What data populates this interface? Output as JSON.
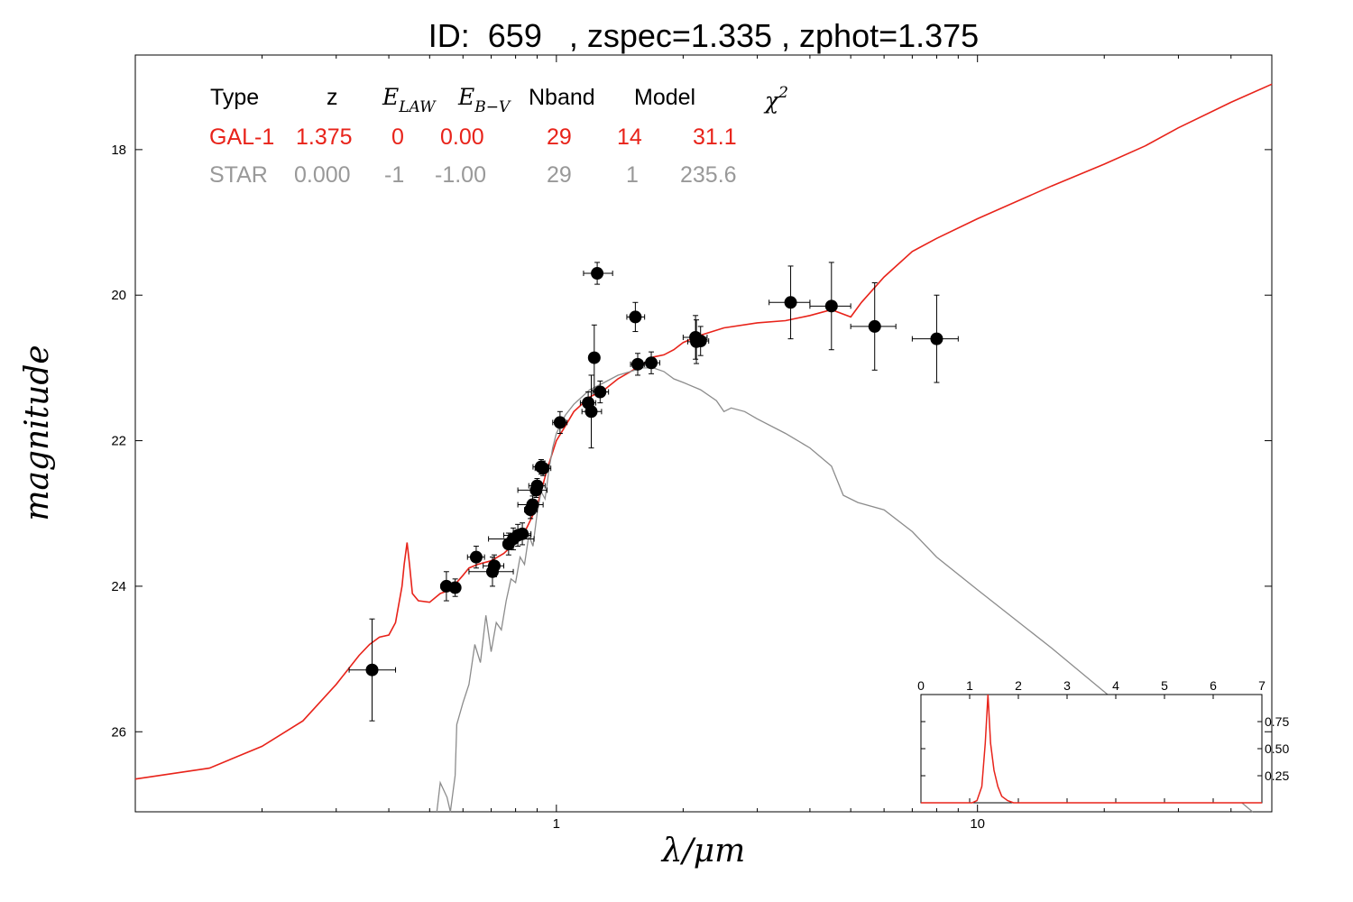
{
  "chart_data": {
    "type": "scatter",
    "title": "ID:  659   , zspec=1.335 , zphot=1.375",
    "xlabel": "λ/μm",
    "ylabel": "magnitude",
    "xscale": "log",
    "xlim": [
      0.1,
      50
    ],
    "ylim": [
      27.1,
      16.7
    ],
    "x_ticks": [
      "1",
      "10"
    ],
    "y_ticks": [
      "18",
      "20",
      "22",
      "24",
      "26"
    ],
    "grid": false,
    "colors": {
      "galaxy": "#e8231a",
      "star": "#8c8c8c",
      "points": "#000000"
    },
    "summary_table": {
      "headers": [
        "Type",
        "z",
        "E_LAW",
        "E_B-V",
        "Nband",
        "Model",
        "χ2"
      ],
      "rows": [
        {
          "name": "GAL-1",
          "color": "#e8231a",
          "values": [
            "GAL-1",
            "1.375",
            "0",
            "0.00",
            "29",
            "14",
            "31.1"
          ]
        },
        {
          "name": "STAR",
          "color": "#999999",
          "values": [
            "STAR",
            "0.000",
            "-1",
            "-1.00",
            "29",
            "1",
            "235.6"
          ]
        }
      ]
    },
    "photometry": [
      {
        "x": 0.365,
        "y": 25.15,
        "xerr": [
          0.322,
          0.415
        ],
        "yerr": 0.7
      },
      {
        "x": 0.548,
        "y": 24.0,
        "xerr": [
          0.532,
          0.562
        ],
        "yerr": 0.2
      },
      {
        "x": 0.575,
        "y": 24.02,
        "xerr": [
          0.56,
          0.59
        ],
        "yerr": 0.12
      },
      {
        "x": 0.645,
        "y": 23.6,
        "xerr": [
          0.615,
          0.675
        ],
        "yerr": 0.15
      },
      {
        "x": 0.712,
        "y": 23.72,
        "xerr": [
          0.67,
          0.75
        ],
        "yerr": 0.15
      },
      {
        "x": 0.705,
        "y": 23.8,
        "xerr": [
          0.62,
          0.79
        ],
        "yerr": 0.2
      },
      {
        "x": 0.77,
        "y": 23.42,
        "xerr": [
          0.76,
          0.785
        ],
        "yerr": 0.15
      },
      {
        "x": 0.79,
        "y": 23.35,
        "xerr": [
          0.69,
          0.885
        ],
        "yerr": 0.15
      },
      {
        "x": 0.81,
        "y": 23.3,
        "xerr": [
          0.75,
          0.87
        ],
        "yerr": 0.15
      },
      {
        "x": 0.83,
        "y": 23.28,
        "xerr": [
          0.79,
          0.87
        ],
        "yerr": 0.15
      },
      {
        "x": 0.868,
        "y": 22.95,
        "xerr": [
          0.84,
          0.9
        ],
        "yerr": 0.12
      },
      {
        "x": 0.878,
        "y": 22.88,
        "xerr": [
          0.81,
          0.93
        ],
        "yerr": 0.12
      },
      {
        "x": 0.895,
        "y": 22.68,
        "xerr": [
          0.81,
          0.95
        ],
        "yerr": 0.1
      },
      {
        "x": 0.9,
        "y": 22.62,
        "xerr": [
          0.86,
          0.94
        ],
        "yerr": 0.1
      },
      {
        "x": 0.92,
        "y": 22.36,
        "xerr": [
          0.88,
          0.96
        ],
        "yerr": 0.1
      },
      {
        "x": 0.93,
        "y": 22.38,
        "xerr": [
          0.89,
          0.97
        ],
        "yerr": 0.1
      },
      {
        "x": 1.02,
        "y": 21.75,
        "xerr": [
          0.98,
          1.06
        ],
        "yerr": 0.15
      },
      {
        "x": 1.19,
        "y": 21.48,
        "xerr": [
          1.14,
          1.24
        ],
        "yerr": 0.15
      },
      {
        "x": 1.21,
        "y": 21.6,
        "xerr": [
          1.15,
          1.28
        ],
        "yerr": 0.5
      },
      {
        "x": 1.23,
        "y": 20.86,
        "xerr": [
          1.2,
          1.26
        ],
        "yerr": 0.45
      },
      {
        "x": 1.27,
        "y": 21.33,
        "xerr": [
          1.22,
          1.33
        ],
        "yerr": 0.15
      },
      {
        "x": 1.25,
        "y": 19.7,
        "xerr": [
          1.16,
          1.36
        ],
        "yerr": 0.15
      },
      {
        "x": 1.54,
        "y": 20.3,
        "xerr": [
          1.47,
          1.62
        ],
        "yerr": 0.2
      },
      {
        "x": 1.56,
        "y": 20.95,
        "xerr": [
          1.5,
          1.62
        ],
        "yerr": 0.15
      },
      {
        "x": 1.68,
        "y": 20.93,
        "xerr": [
          1.6,
          1.76
        ],
        "yerr": 0.15
      },
      {
        "x": 2.14,
        "y": 20.58,
        "xerr": [
          2.0,
          2.28
        ],
        "yerr": 0.3
      },
      {
        "x": 2.15,
        "y": 20.64,
        "xerr": [
          2.05,
          2.25
        ],
        "yerr": 0.3
      },
      {
        "x": 2.2,
        "y": 20.63,
        "xerr": [
          2.1,
          2.3
        ],
        "yerr": 0.2
      },
      {
        "x": 3.6,
        "y": 20.1,
        "xerr": [
          3.2,
          4.0
        ],
        "yerr": 0.5
      },
      {
        "x": 4.5,
        "y": 20.15,
        "xerr": [
          4.0,
          5.0
        ],
        "yerr": 0.6
      },
      {
        "x": 5.7,
        "y": 20.43,
        "xerr": [
          5.0,
          6.4
        ],
        "yerr": 0.6
      },
      {
        "x": 8.0,
        "y": 20.6,
        "xerr": [
          7.0,
          9.0
        ],
        "yerr": 0.6
      }
    ],
    "series": [
      {
        "name": "GAL-1",
        "color": "#e8231a",
        "points": [
          [
            0.1,
            26.65
          ],
          [
            0.15,
            26.5
          ],
          [
            0.2,
            26.2
          ],
          [
            0.25,
            25.85
          ],
          [
            0.3,
            25.35
          ],
          [
            0.34,
            24.95
          ],
          [
            0.36,
            24.8
          ],
          [
            0.38,
            24.7
          ],
          [
            0.4,
            24.67
          ],
          [
            0.415,
            24.5
          ],
          [
            0.43,
            24.0
          ],
          [
            0.435,
            23.7
          ],
          [
            0.442,
            23.4
          ],
          [
            0.448,
            23.7
          ],
          [
            0.455,
            24.1
          ],
          [
            0.47,
            24.2
          ],
          [
            0.5,
            24.22
          ],
          [
            0.53,
            24.1
          ],
          [
            0.56,
            24.05
          ],
          [
            0.6,
            23.85
          ],
          [
            0.62,
            23.75
          ],
          [
            0.65,
            23.7
          ],
          [
            0.7,
            23.65
          ],
          [
            0.75,
            23.55
          ],
          [
            0.8,
            23.4
          ],
          [
            0.85,
            23.2
          ],
          [
            0.9,
            22.9
          ],
          [
            0.95,
            22.4
          ],
          [
            1.0,
            22.0
          ],
          [
            1.05,
            21.8
          ],
          [
            1.1,
            21.6
          ],
          [
            1.2,
            21.4
          ],
          [
            1.3,
            21.3
          ],
          [
            1.4,
            21.15
          ],
          [
            1.5,
            21.05
          ],
          [
            1.6,
            20.95
          ],
          [
            1.7,
            20.85
          ],
          [
            1.8,
            20.82
          ],
          [
            1.9,
            20.75
          ],
          [
            2.0,
            20.65
          ],
          [
            2.2,
            20.55
          ],
          [
            2.5,
            20.45
          ],
          [
            3.0,
            20.38
          ],
          [
            3.5,
            20.35
          ],
          [
            4.0,
            20.28
          ],
          [
            4.5,
            20.2
          ],
          [
            5.0,
            20.3
          ],
          [
            5.3,
            20.1
          ],
          [
            6.0,
            19.75
          ],
          [
            7.0,
            19.4
          ],
          [
            8.0,
            19.22
          ],
          [
            10.0,
            18.95
          ],
          [
            15.0,
            18.5
          ],
          [
            20.0,
            18.2
          ],
          [
            25.0,
            17.95
          ],
          [
            30.0,
            17.7
          ],
          [
            40.0,
            17.35
          ],
          [
            50.0,
            17.1
          ]
        ]
      },
      {
        "name": "STAR",
        "color": "#8c8c8c",
        "points": [
          [
            0.52,
            27.1
          ],
          [
            0.53,
            26.7
          ],
          [
            0.55,
            26.9
          ],
          [
            0.56,
            27.1
          ],
          [
            0.575,
            26.6
          ],
          [
            0.58,
            25.9
          ],
          [
            0.6,
            25.6
          ],
          [
            0.62,
            25.35
          ],
          [
            0.64,
            24.8
          ],
          [
            0.66,
            25.05
          ],
          [
            0.68,
            24.4
          ],
          [
            0.7,
            24.9
          ],
          [
            0.72,
            24.5
          ],
          [
            0.74,
            24.6
          ],
          [
            0.76,
            24.2
          ],
          [
            0.78,
            23.9
          ],
          [
            0.8,
            23.95
          ],
          [
            0.82,
            23.6
          ],
          [
            0.84,
            23.7
          ],
          [
            0.86,
            23.3
          ],
          [
            0.88,
            23.45
          ],
          [
            0.9,
            23.0
          ],
          [
            0.92,
            22.7
          ],
          [
            0.94,
            22.8
          ],
          [
            0.96,
            22.4
          ],
          [
            0.98,
            22.1
          ],
          [
            1.0,
            21.9
          ],
          [
            1.05,
            21.65
          ],
          [
            1.1,
            21.5
          ],
          [
            1.2,
            21.3
          ],
          [
            1.3,
            21.2
          ],
          [
            1.4,
            21.1
          ],
          [
            1.5,
            21.05
          ],
          [
            1.6,
            21.0
          ],
          [
            1.7,
            21.0
          ],
          [
            1.8,
            21.05
          ],
          [
            1.9,
            21.15
          ],
          [
            2.0,
            21.2
          ],
          [
            2.2,
            21.3
          ],
          [
            2.4,
            21.45
          ],
          [
            2.5,
            21.6
          ],
          [
            2.6,
            21.55
          ],
          [
            2.8,
            21.6
          ],
          [
            3.0,
            21.7
          ],
          [
            3.5,
            21.9
          ],
          [
            4.0,
            22.1
          ],
          [
            4.5,
            22.35
          ],
          [
            4.8,
            22.75
          ],
          [
            5.2,
            22.85
          ],
          [
            6.0,
            22.95
          ],
          [
            7.0,
            23.25
          ],
          [
            8.0,
            23.6
          ],
          [
            10.0,
            24.05
          ],
          [
            15.0,
            24.85
          ],
          [
            20.0,
            25.45
          ],
          [
            30.0,
            26.3
          ],
          [
            40.0,
            26.85
          ],
          [
            45.0,
            27.1
          ]
        ]
      }
    ],
    "inset": {
      "type": "line",
      "x_ticks": [
        "0",
        "1",
        "2",
        "3",
        "4",
        "5",
        "6",
        "7"
      ],
      "y_ticks": [
        "0.25",
        "0.50",
        "0.75"
      ],
      "xlim": [
        0,
        7
      ],
      "ylim": [
        0,
        1.0
      ],
      "color": "#e8231a",
      "points": [
        [
          0.0,
          0.0
        ],
        [
          1.05,
          0.0
        ],
        [
          1.15,
          0.02
        ],
        [
          1.25,
          0.15
        ],
        [
          1.32,
          0.55
        ],
        [
          1.375,
          1.0
        ],
        [
          1.43,
          0.55
        ],
        [
          1.5,
          0.3
        ],
        [
          1.58,
          0.15
        ],
        [
          1.66,
          0.06
        ],
        [
          1.78,
          0.02
        ],
        [
          1.9,
          0.0
        ],
        [
          7.0,
          0.0
        ]
      ]
    }
  }
}
